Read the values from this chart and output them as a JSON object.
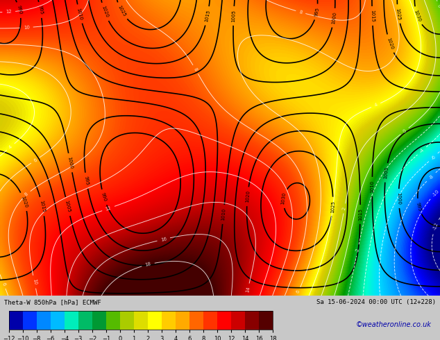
{
  "title_line1": "Theta-W 850hPa [hPa] ECMWF",
  "title_line2": "Sa 15-06-2024 00:00 UTC (12+228)",
  "colorbar_label": "Theta-W 850hPa [hPa] ECMWF",
  "watermark": "©weatheronline.co.uk",
  "cbar_ticks": [
    -12,
    -10,
    -8,
    -6,
    -4,
    -3,
    -2,
    -1,
    0,
    1,
    2,
    3,
    4,
    6,
    8,
    10,
    12,
    14,
    16,
    18
  ],
  "cbar_colors": [
    "#0000cd",
    "#0033ff",
    "#0099ff",
    "#00ccff",
    "#00ffcc",
    "#00cc66",
    "#009933",
    "#33cc00",
    "#99cc00",
    "#cccc00",
    "#ffff00",
    "#ffcc00",
    "#ff9900",
    "#ff6600",
    "#ff3300",
    "#ff0000",
    "#cc0000",
    "#990000",
    "#660000",
    "#330000"
  ],
  "bg_color": "#c8c8c8",
  "fig_width": 6.34,
  "fig_height": 4.9,
  "dpi": 100
}
